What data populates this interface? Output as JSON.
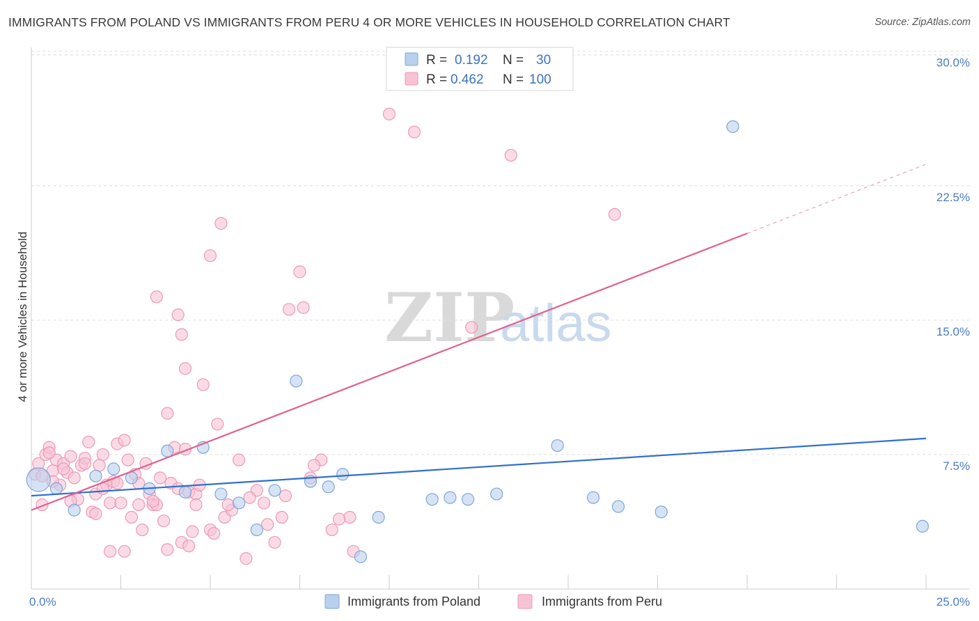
{
  "title": "IMMIGRANTS FROM POLAND VS IMMIGRANTS FROM PERU 4 OR MORE VEHICLES IN HOUSEHOLD CORRELATION CHART",
  "source": "Source: ZipAtlas.com",
  "watermark": {
    "zip": "ZIP",
    "atlas": "atlas"
  },
  "legend": {
    "r_label": "R =",
    "n_label": "N =",
    "poland": {
      "r": "0.192",
      "n": "30"
    },
    "peru": {
      "r": "0.462",
      "n": "100"
    }
  },
  "colors": {
    "poland_fill": "#b9d0ee",
    "poland_stroke": "#7fa6d9",
    "poland_line": "#2f6fcf",
    "peru_fill": "#f7c3d3",
    "peru_stroke": "#eb9ab5",
    "peru_line": "#e0608f",
    "tick_text": "#4a7cc4"
  },
  "chart_data": {
    "type": "scatter",
    "title": "IMMIGRANTS FROM POLAND VS IMMIGRANTS FROM PERU 4 OR MORE VEHICLES IN HOUSEHOLD CORRELATION CHART",
    "xlabel": "",
    "ylabel": "4 or more Vehicles in Household",
    "xlim": [
      0,
      25
    ],
    "ylim": [
      0,
      31
    ],
    "x_tick_labels": [
      "0.0%",
      "25.0%"
    ],
    "y_ticks": [
      7.5,
      15.0,
      22.5,
      30.0
    ],
    "y_tick_labels": [
      "7.5%",
      "15.0%",
      "22.5%",
      "30.0%"
    ],
    "grid": true,
    "legend_position": "bottom-center",
    "series": [
      {
        "name": "Immigrants from Poland",
        "color": "#b9d0ee",
        "trend": {
          "x": [
            0,
            25
          ],
          "y": [
            5.2,
            8.4
          ],
          "dashed_after": null
        },
        "points": [
          {
            "x": 0.2,
            "y": 6.1,
            "big": true
          },
          {
            "x": 0.7,
            "y": 5.6
          },
          {
            "x": 1.2,
            "y": 4.4
          },
          {
            "x": 1.8,
            "y": 6.3
          },
          {
            "x": 2.3,
            "y": 6.7
          },
          {
            "x": 2.8,
            "y": 6.2
          },
          {
            "x": 3.3,
            "y": 5.6
          },
          {
            "x": 3.8,
            "y": 7.7
          },
          {
            "x": 4.3,
            "y": 5.4
          },
          {
            "x": 4.8,
            "y": 7.9
          },
          {
            "x": 5.3,
            "y": 5.3
          },
          {
            "x": 5.8,
            "y": 4.8
          },
          {
            "x": 6.3,
            "y": 3.3
          },
          {
            "x": 6.8,
            "y": 5.5
          },
          {
            "x": 7.4,
            "y": 11.6
          },
          {
            "x": 7.8,
            "y": 6.0
          },
          {
            "x": 8.3,
            "y": 5.7
          },
          {
            "x": 8.7,
            "y": 6.4
          },
          {
            "x": 9.2,
            "y": 1.8
          },
          {
            "x": 9.7,
            "y": 4.0
          },
          {
            "x": 11.2,
            "y": 5.0
          },
          {
            "x": 11.7,
            "y": 5.1
          },
          {
            "x": 12.2,
            "y": 5.0
          },
          {
            "x": 13.0,
            "y": 5.3
          },
          {
            "x": 14.7,
            "y": 8.0
          },
          {
            "x": 15.7,
            "y": 5.1
          },
          {
            "x": 16.4,
            "y": 4.6
          },
          {
            "x": 17.6,
            "y": 4.3
          },
          {
            "x": 19.6,
            "y": 25.8
          },
          {
            "x": 24.9,
            "y": 3.5
          }
        ]
      },
      {
        "name": "Immigrants from Peru",
        "color": "#f7c3d3",
        "trend": {
          "x": [
            0,
            25
          ],
          "y": [
            4.4,
            23.7
          ],
          "dashed_after": 20
        },
        "points": [
          {
            "x": 0.1,
            "y": 6.4
          },
          {
            "x": 0.2,
            "y": 7.0
          },
          {
            "x": 0.3,
            "y": 4.7
          },
          {
            "x": 0.4,
            "y": 7.5
          },
          {
            "x": 0.5,
            "y": 7.9
          },
          {
            "x": 0.6,
            "y": 6.6
          },
          {
            "x": 0.7,
            "y": 7.2
          },
          {
            "x": 0.8,
            "y": 5.8
          },
          {
            "x": 0.9,
            "y": 7.0
          },
          {
            "x": 1.0,
            "y": 6.5
          },
          {
            "x": 1.1,
            "y": 7.4
          },
          {
            "x": 1.2,
            "y": 6.2
          },
          {
            "x": 1.3,
            "y": 5.0
          },
          {
            "x": 1.4,
            "y": 6.9
          },
          {
            "x": 1.5,
            "y": 7.3
          },
          {
            "x": 1.6,
            "y": 8.2
          },
          {
            "x": 1.7,
            "y": 4.3
          },
          {
            "x": 1.8,
            "y": 5.3
          },
          {
            "x": 1.9,
            "y": 6.9
          },
          {
            "x": 2.0,
            "y": 7.5
          },
          {
            "x": 2.1,
            "y": 5.8
          },
          {
            "x": 2.2,
            "y": 4.8
          },
          {
            "x": 2.3,
            "y": 6.0
          },
          {
            "x": 2.4,
            "y": 8.1
          },
          {
            "x": 2.5,
            "y": 4.8
          },
          {
            "x": 2.6,
            "y": 8.3
          },
          {
            "x": 2.7,
            "y": 7.2
          },
          {
            "x": 2.8,
            "y": 4.0
          },
          {
            "x": 2.9,
            "y": 6.4
          },
          {
            "x": 3.0,
            "y": 5.9
          },
          {
            "x": 3.1,
            "y": 3.3
          },
          {
            "x": 3.2,
            "y": 7.0
          },
          {
            "x": 3.3,
            "y": 5.3
          },
          {
            "x": 3.4,
            "y": 4.7
          },
          {
            "x": 3.5,
            "y": 4.7
          },
          {
            "x": 3.6,
            "y": 6.2
          },
          {
            "x": 3.7,
            "y": 3.8
          },
          {
            "x": 3.8,
            "y": 9.8
          },
          {
            "x": 3.9,
            "y": 5.9
          },
          {
            "x": 4.0,
            "y": 7.9
          },
          {
            "x": 4.1,
            "y": 5.6
          },
          {
            "x": 4.2,
            "y": 2.6
          },
          {
            "x": 4.3,
            "y": 7.8
          },
          {
            "x": 4.4,
            "y": 5.4
          },
          {
            "x": 4.5,
            "y": 3.2
          },
          {
            "x": 4.6,
            "y": 5.3
          },
          {
            "x": 4.7,
            "y": 5.8
          },
          {
            "x": 4.8,
            "y": 11.4
          },
          {
            "x": 5.0,
            "y": 3.3
          },
          {
            "x": 5.2,
            "y": 9.2
          },
          {
            "x": 5.4,
            "y": 4.0
          },
          {
            "x": 5.6,
            "y": 4.4
          },
          {
            "x": 5.8,
            "y": 7.2
          },
          {
            "x": 6.0,
            "y": 1.7
          },
          {
            "x": 6.3,
            "y": 5.5
          },
          {
            "x": 6.5,
            "y": 4.8
          },
          {
            "x": 6.8,
            "y": 2.6
          },
          {
            "x": 7.0,
            "y": 4.0
          },
          {
            "x": 7.2,
            "y": 15.6
          },
          {
            "x": 7.5,
            "y": 17.7
          },
          {
            "x": 7.8,
            "y": 6.2
          },
          {
            "x": 8.1,
            "y": 7.2
          },
          {
            "x": 8.4,
            "y": 3.3
          },
          {
            "x": 8.9,
            "y": 4.0
          },
          {
            "x": 9.0,
            "y": 2.1
          },
          {
            "x": 10.0,
            "y": 26.5
          },
          {
            "x": 10.7,
            "y": 25.5
          },
          {
            "x": 12.3,
            "y": 14.6
          },
          {
            "x": 13.4,
            "y": 24.2
          },
          {
            "x": 16.3,
            "y": 20.9
          },
          {
            "x": 5.3,
            "y": 20.4
          },
          {
            "x": 5.0,
            "y": 18.6
          },
          {
            "x": 3.5,
            "y": 16.3
          },
          {
            "x": 4.1,
            "y": 15.3
          },
          {
            "x": 4.2,
            "y": 14.2
          },
          {
            "x": 4.3,
            "y": 12.3
          },
          {
            "x": 7.6,
            "y": 15.7
          },
          {
            "x": 2.2,
            "y": 2.1
          },
          {
            "x": 2.6,
            "y": 2.1
          },
          {
            "x": 3.0,
            "y": 4.7
          },
          {
            "x": 3.8,
            "y": 2.2
          },
          {
            "x": 4.4,
            "y": 2.4
          },
          {
            "x": 1.1,
            "y": 4.9
          },
          {
            "x": 0.6,
            "y": 6.0
          },
          {
            "x": 1.8,
            "y": 4.2
          },
          {
            "x": 2.0,
            "y": 5.6
          },
          {
            "x": 2.4,
            "y": 5.9
          },
          {
            "x": 3.4,
            "y": 4.9
          },
          {
            "x": 4.6,
            "y": 4.7
          },
          {
            "x": 5.1,
            "y": 3.1
          },
          {
            "x": 5.5,
            "y": 4.7
          },
          {
            "x": 6.1,
            "y": 5.1
          },
          {
            "x": 6.6,
            "y": 3.6
          },
          {
            "x": 7.1,
            "y": 5.2
          },
          {
            "x": 7.9,
            "y": 6.9
          },
          {
            "x": 8.6,
            "y": 3.9
          },
          {
            "x": 1.5,
            "y": 7.0
          },
          {
            "x": 0.9,
            "y": 6.7
          },
          {
            "x": 0.3,
            "y": 6.3
          },
          {
            "x": 0.5,
            "y": 7.6
          }
        ]
      }
    ]
  }
}
